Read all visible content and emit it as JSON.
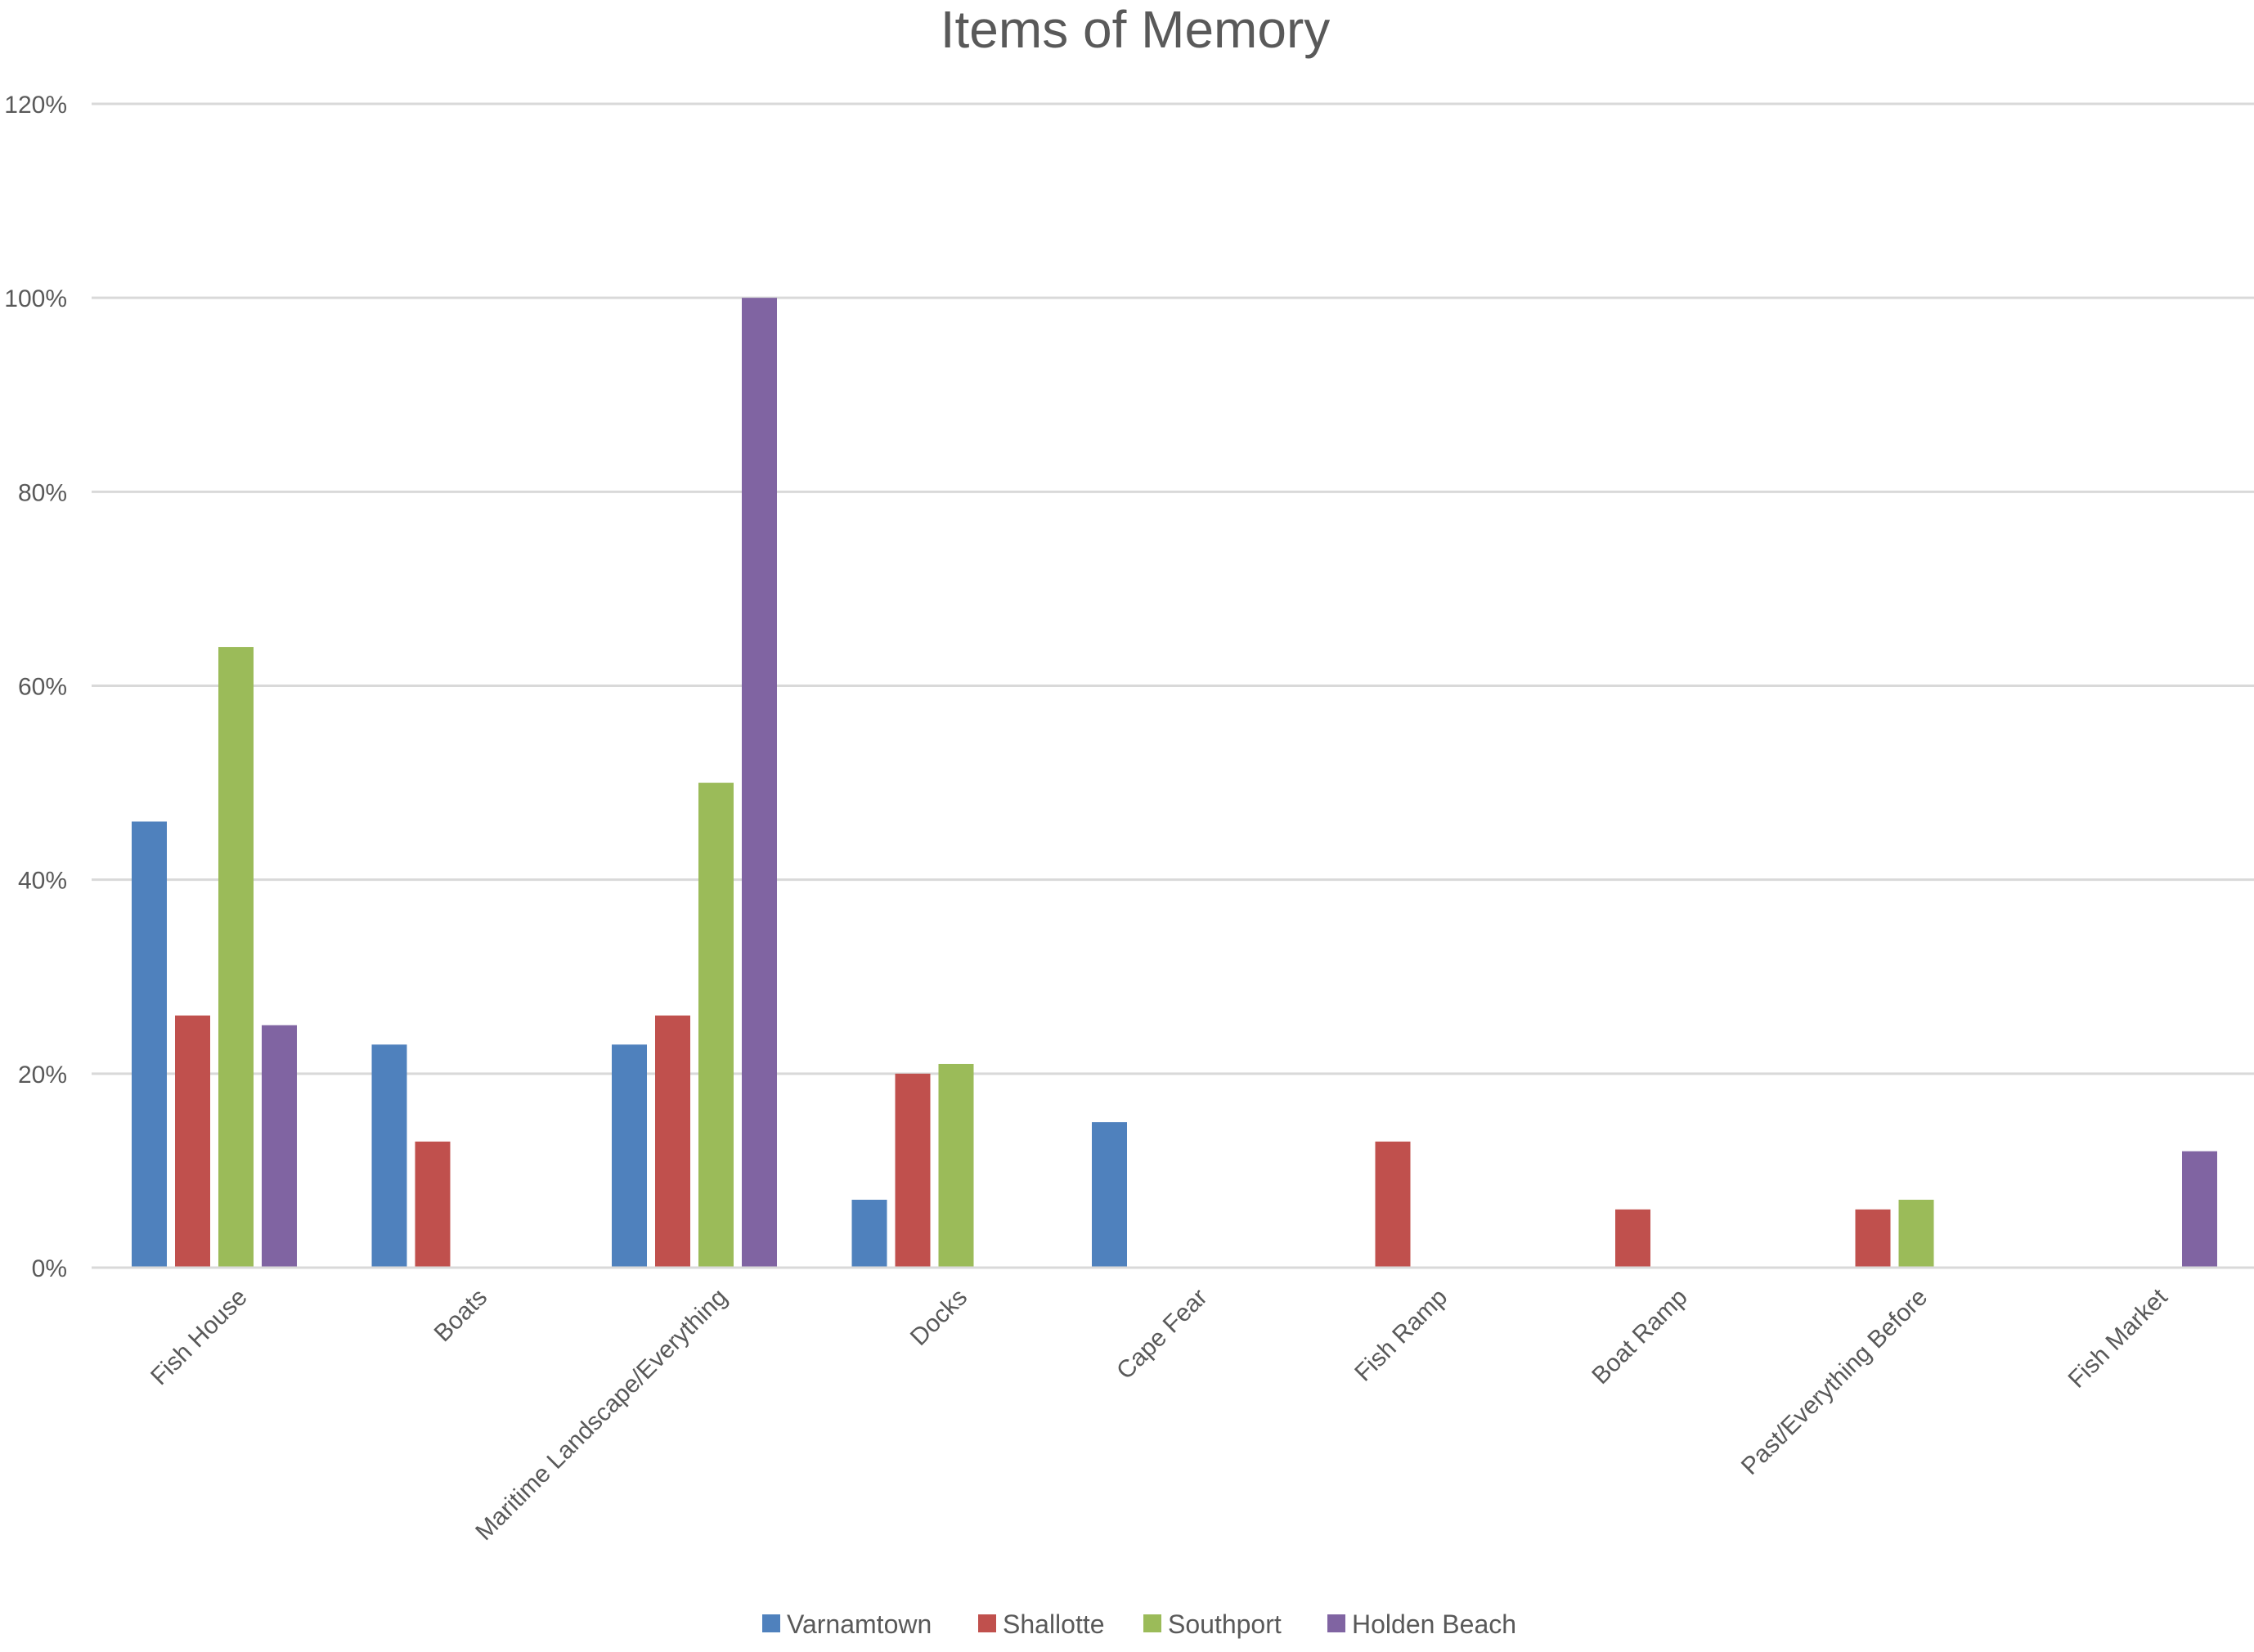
{
  "chart_data": {
    "type": "bar",
    "title": "Items of Memory",
    "xlabel": "",
    "ylabel": "",
    "ylim": [
      0,
      120
    ],
    "y_ticks": [
      "0%",
      "20%",
      "40%",
      "60%",
      "80%",
      "100%",
      "120%"
    ],
    "y_tick_values": [
      0,
      20,
      40,
      60,
      80,
      100,
      120
    ],
    "grid": true,
    "legend_position": "bottom",
    "categories": [
      "Fish House",
      "Boats",
      "Maritime Landscape/Everything",
      "Docks",
      "Cape Fear",
      "Fish Ramp",
      "Boat Ramp",
      "Past/Everything Before",
      "Fish Market"
    ],
    "series": [
      {
        "name": "Varnamtown",
        "color": "#4f81bd",
        "values": [
          46,
          23,
          23,
          7,
          15,
          null,
          null,
          null,
          null
        ]
      },
      {
        "name": "Shallotte",
        "color": "#c0504d",
        "values": [
          26,
          13,
          26,
          20,
          null,
          13,
          6,
          6,
          null
        ]
      },
      {
        "name": "Southport",
        "color": "#9bbb59",
        "values": [
          64,
          null,
          50,
          21,
          null,
          null,
          null,
          7,
          null
        ]
      },
      {
        "name": "Holden Beach",
        "color": "#8064a2",
        "values": [
          25,
          null,
          100,
          null,
          null,
          null,
          null,
          null,
          12
        ]
      }
    ]
  }
}
